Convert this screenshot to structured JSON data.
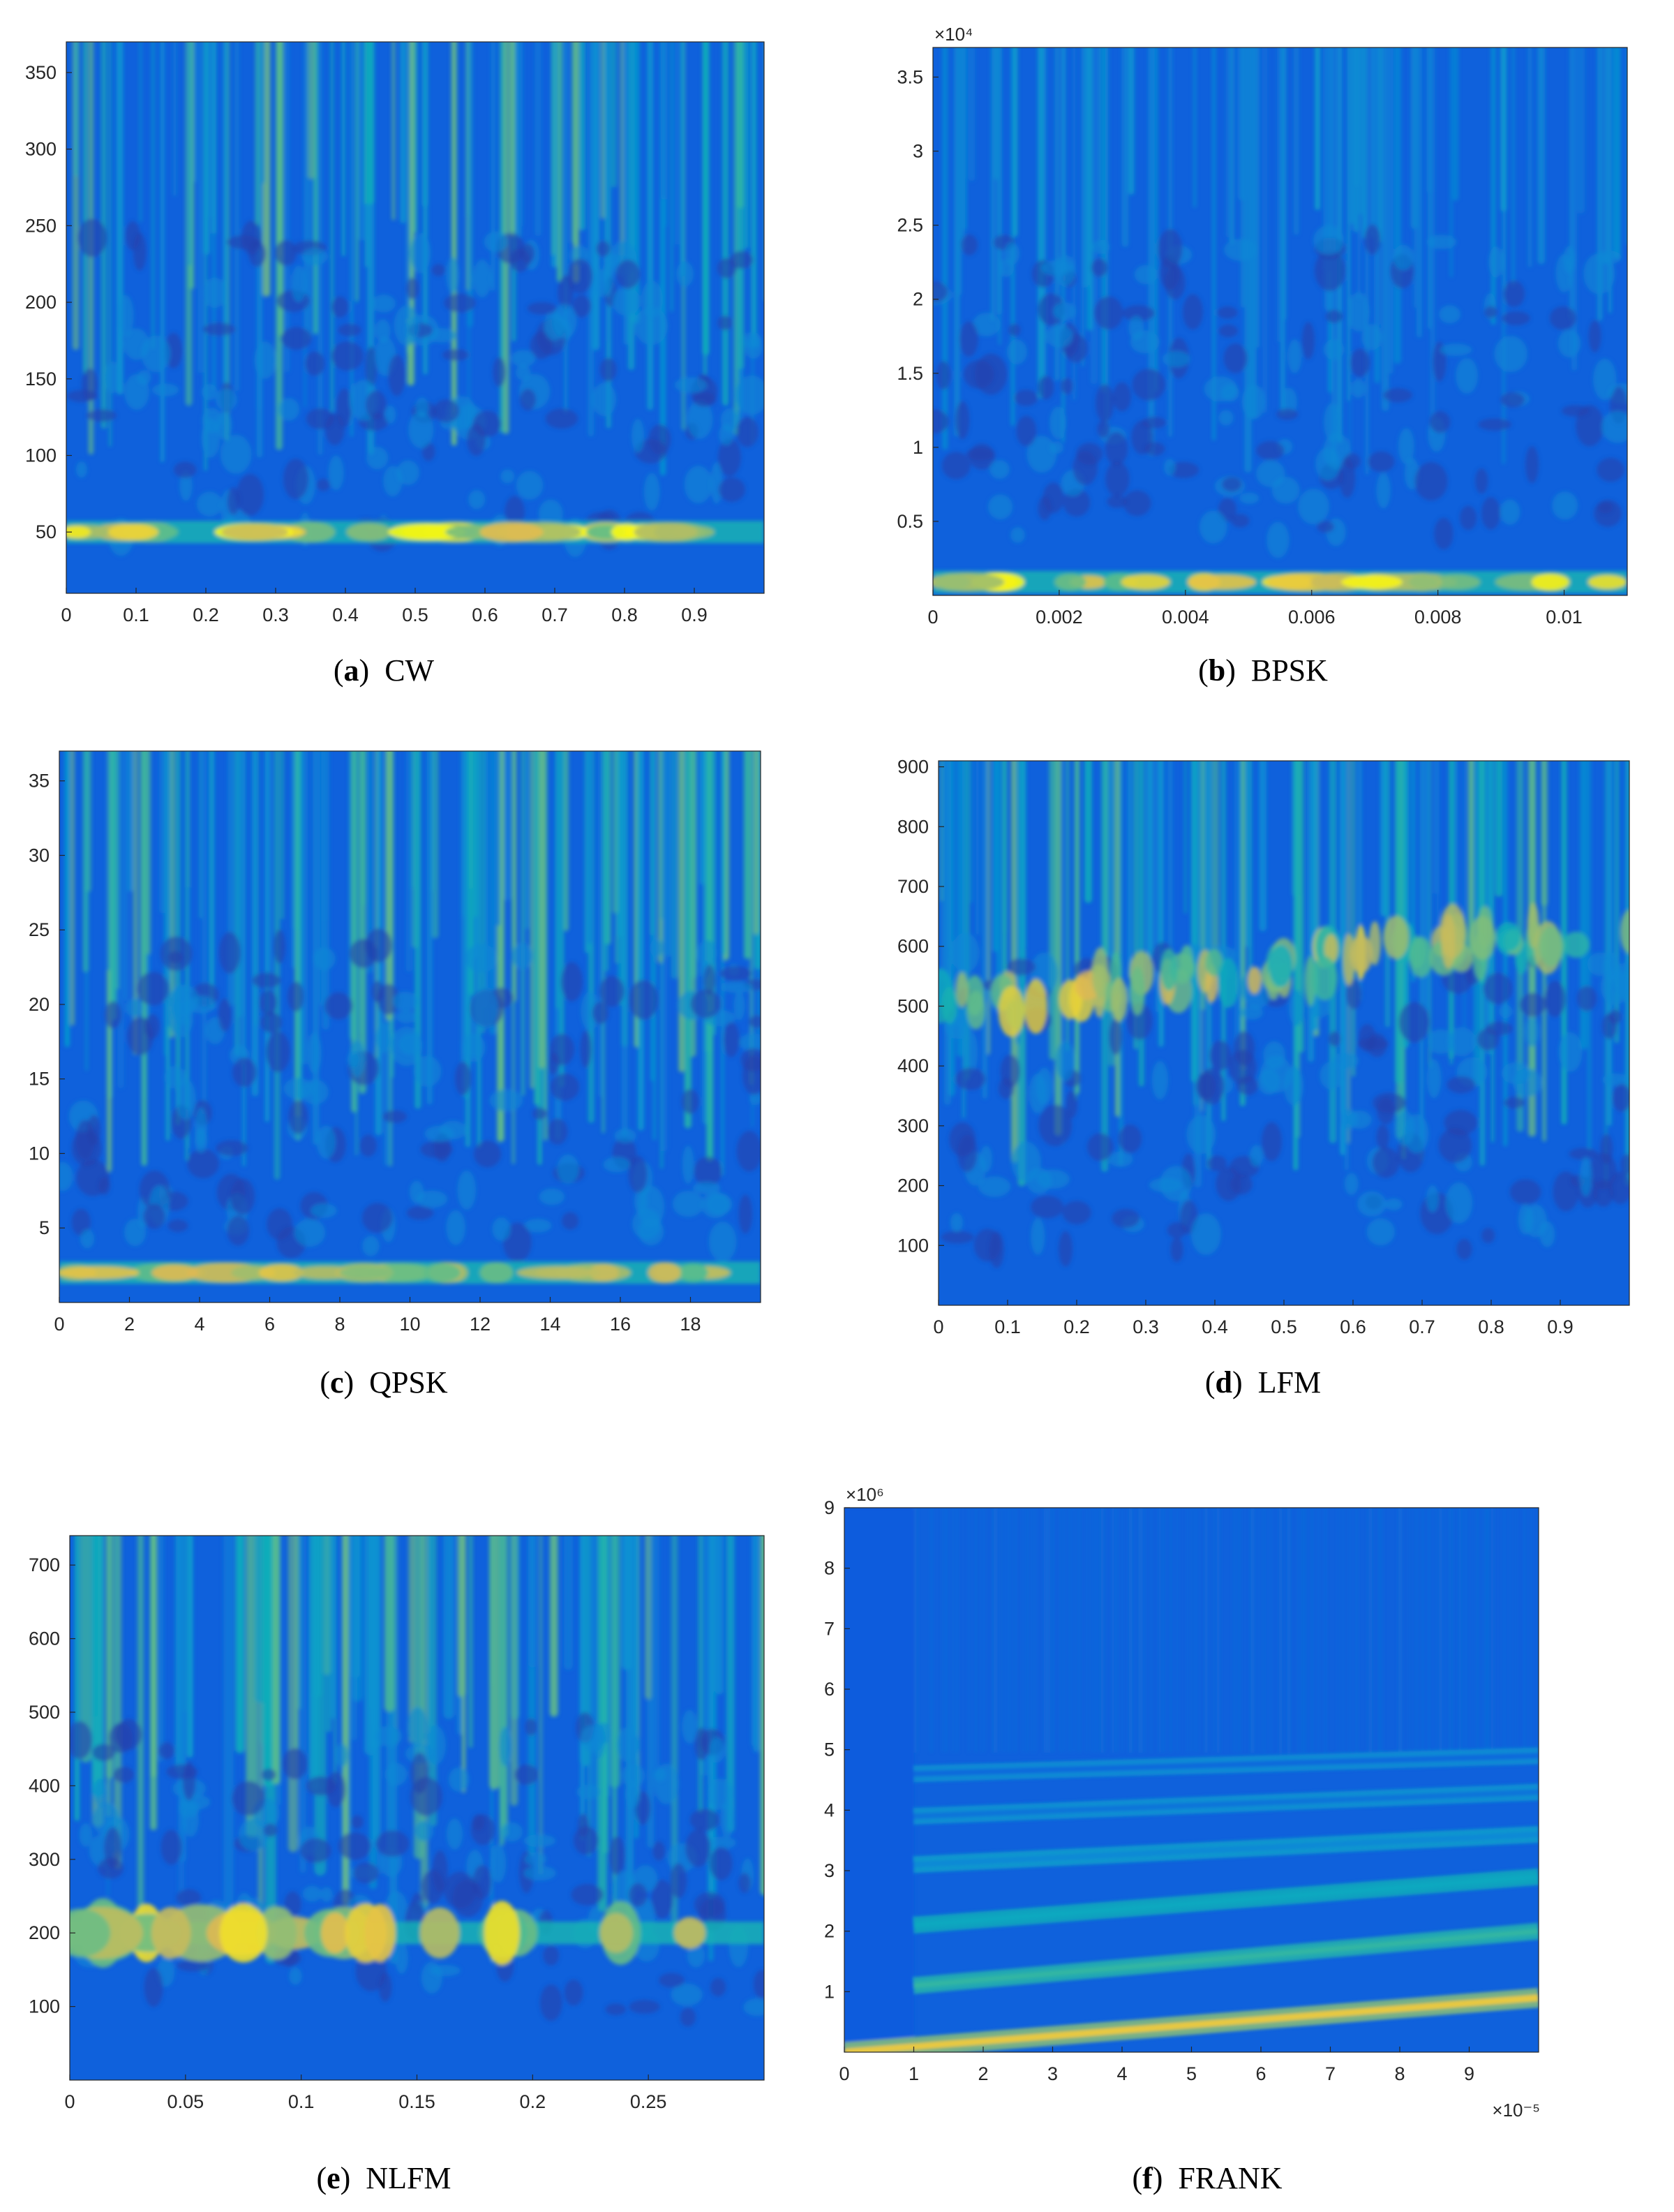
{
  "chart_data": [
    {
      "type": "heatmap",
      "panel": "a",
      "caption_letter": "a",
      "caption_name": "CW",
      "xticks": [
        0,
        0.1,
        0.2,
        0.3,
        0.4,
        0.5,
        0.6,
        0.7,
        0.8,
        0.9
      ],
      "xtick_labels": [
        "0",
        "0.1",
        "0.2",
        "0.3",
        "0.4",
        "0.5",
        "0.6",
        "0.7",
        "0.8",
        "0.9"
      ],
      "yticks": [
        50,
        100,
        150,
        200,
        250,
        300,
        350
      ],
      "ytick_labels": [
        "50",
        "100",
        "150",
        "200",
        "250",
        "300",
        "350"
      ],
      "xlim": [
        0,
        1
      ],
      "ylim": [
        10,
        370
      ],
      "x_multiplier": "",
      "y_multiplier": "",
      "bands": [
        {
          "y": 50,
          "strength": 0.95
        }
      ],
      "colormap": "parula"
    },
    {
      "type": "heatmap",
      "panel": "b",
      "caption_letter": "b",
      "caption_name": "BPSK",
      "xticks": [
        0,
        0.002,
        0.004,
        0.006,
        0.008,
        0.01
      ],
      "xtick_labels": [
        "0",
        "0.002",
        "0.004",
        "0.006",
        "0.008",
        "0.01"
      ],
      "yticks": [
        0.5,
        1,
        1.5,
        2,
        2.5,
        3,
        3.5
      ],
      "ytick_labels": [
        "0.5",
        "1",
        "1.5",
        "2",
        "2.5",
        "3",
        "3.5"
      ],
      "xlim": [
        0,
        0.011
      ],
      "ylim": [
        0,
        3.7
      ],
      "x_multiplier": "",
      "y_multiplier": "×10⁴",
      "bands": [
        {
          "y": 0.09,
          "strength": 0.9
        }
      ],
      "colormap": "parula"
    },
    {
      "type": "heatmap",
      "panel": "c",
      "caption_letter": "c",
      "caption_name": "QPSK",
      "xticks": [
        0,
        2,
        4,
        6,
        8,
        10,
        12,
        14,
        16,
        18
      ],
      "xtick_labels": [
        "0",
        "2",
        "4",
        "6",
        "8",
        "10",
        "12",
        "14",
        "16",
        "18"
      ],
      "yticks": [
        5,
        10,
        15,
        20,
        25,
        30,
        35
      ],
      "ytick_labels": [
        "5",
        "10",
        "15",
        "20",
        "25",
        "30",
        "35"
      ],
      "xlim": [
        0,
        20
      ],
      "ylim": [
        0,
        37
      ],
      "x_multiplier": "",
      "y_multiplier": "",
      "bands": [
        {
          "y": 2,
          "strength": 0.7
        }
      ],
      "colormap": "parula"
    },
    {
      "type": "heatmap",
      "panel": "d",
      "caption_letter": "d",
      "caption_name": "LFM",
      "xticks": [
        0,
        0.1,
        0.2,
        0.3,
        0.4,
        0.5,
        0.6,
        0.7,
        0.8,
        0.9
      ],
      "xtick_labels": [
        "0",
        "0.1",
        "0.2",
        "0.3",
        "0.4",
        "0.5",
        "0.6",
        "0.7",
        "0.8",
        "0.9"
      ],
      "yticks": [
        100,
        200,
        300,
        400,
        500,
        600,
        700,
        800,
        900
      ],
      "ytick_labels": [
        "100",
        "200",
        "300",
        "400",
        "500",
        "600",
        "700",
        "800",
        "900"
      ],
      "xlim": [
        0,
        1
      ],
      "ylim": [
        0,
        910
      ],
      "x_multiplier": "",
      "y_multiplier": "",
      "bands": [
        {
          "y": 500,
          "y_end": 630,
          "strength": 0.8
        }
      ],
      "colormap": "parula"
    },
    {
      "type": "heatmap",
      "panel": "e",
      "caption_letter": "e",
      "caption_name": "NLFM",
      "xticks": [
        0,
        0.05,
        0.1,
        0.15,
        0.2,
        0.25
      ],
      "xtick_labels": [
        "0",
        "0.05",
        "0.1",
        "0.15",
        "0.2",
        "0.25"
      ],
      "yticks": [
        100,
        200,
        300,
        400,
        500,
        600,
        700
      ],
      "ytick_labels": [
        "100",
        "200",
        "300",
        "400",
        "500",
        "600",
        "700"
      ],
      "xlim": [
        0,
        0.3
      ],
      "ylim": [
        0,
        740
      ],
      "x_multiplier": "",
      "y_multiplier": "",
      "bands": [
        {
          "y": 200,
          "strength": 0.8
        }
      ],
      "colormap": "parula"
    },
    {
      "type": "heatmap",
      "panel": "f",
      "caption_letter": "f",
      "caption_name": "FRANK",
      "xticks": [
        0,
        1,
        2,
        3,
        4,
        5,
        6,
        7,
        8,
        9
      ],
      "xtick_labels": [
        "0",
        "1",
        "2",
        "3",
        "4",
        "5",
        "6",
        "7",
        "8",
        "9"
      ],
      "yticks": [
        1,
        2,
        3,
        4,
        5,
        6,
        7,
        8,
        9
      ],
      "ytick_labels": [
        "1",
        "2",
        "3",
        "4",
        "5",
        "6",
        "7",
        "8",
        "9"
      ],
      "xlim": [
        0,
        10
      ],
      "ylim": [
        0,
        9
      ],
      "x_multiplier": "×10⁻⁵",
      "y_multiplier": "×10⁶",
      "bands": [
        {
          "y": 0,
          "y_end": 0.9,
          "strength": 0.9
        },
        {
          "y": 1.1,
          "y_end": 2.0,
          "strength": 0.55
        },
        {
          "y": 2.1,
          "y_end": 2.9,
          "strength": 0.45
        },
        {
          "y": 3.1,
          "y_end": 3.6,
          "strength": 0.3
        },
        {
          "y": 3.9,
          "y_end": 4.3,
          "strength": 0.22
        },
        {
          "y": 4.6,
          "y_end": 4.9,
          "strength": 0.18
        }
      ],
      "colormap": "parula"
    }
  ]
}
